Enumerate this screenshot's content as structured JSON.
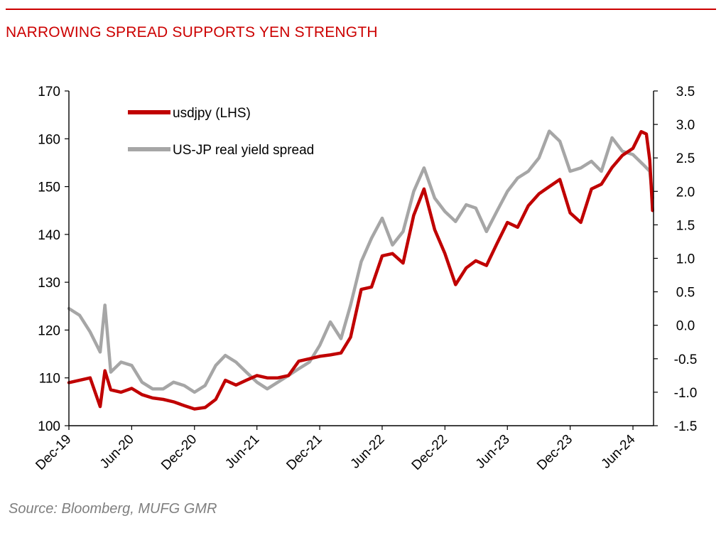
{
  "header": {
    "title": "NARROWING SPREAD SUPPORTS YEN STRENGTH"
  },
  "footer": {
    "source": "Source: Bloomberg, MUFG GMR"
  },
  "chart_data": {
    "type": "line",
    "title": "NARROWING SPREAD SUPPORTS YEN STRENGTH",
    "xlabel": "",
    "ylabel": "",
    "x_range": [
      "2019-12",
      "2024-07"
    ],
    "x_tick_labels": [
      "Dec-19",
      "Jun-20",
      "Dec-20",
      "Jun-21",
      "Dec-21",
      "Jun-22",
      "Dec-22",
      "Jun-23",
      "Dec-23",
      "Jun-24"
    ],
    "y_left": {
      "range": [
        100,
        170
      ],
      "ticks": [
        100,
        110,
        120,
        130,
        140,
        150,
        160,
        170
      ]
    },
    "y_right": {
      "range": [
        -1.5,
        3.5
      ],
      "ticks": [
        "-1.5",
        "-1.0",
        "-0.5",
        "0.0",
        "0.5",
        "1.0",
        "1.5",
        "2.0",
        "2.5",
        "3.0",
        "3.5"
      ]
    },
    "grid": false,
    "legend_position": "top-left",
    "series": [
      {
        "name": "usdjpy (LHS)",
        "axis": "left",
        "color": "#c00000",
        "points": [
          [
            "2019-12-01",
            109.0
          ],
          [
            "2020-01-01",
            109.5
          ],
          [
            "2020-02-01",
            110.0
          ],
          [
            "2020-03-01",
            104.0
          ],
          [
            "2020-03-15",
            111.5
          ],
          [
            "2020-04-01",
            107.5
          ],
          [
            "2020-05-01",
            107.0
          ],
          [
            "2020-06-01",
            107.8
          ],
          [
            "2020-07-01",
            106.5
          ],
          [
            "2020-08-01",
            105.8
          ],
          [
            "2020-09-01",
            105.5
          ],
          [
            "2020-10-01",
            105.0
          ],
          [
            "2020-11-01",
            104.2
          ],
          [
            "2020-12-01",
            103.5
          ],
          [
            "2021-01-01",
            103.8
          ],
          [
            "2021-02-01",
            105.5
          ],
          [
            "2021-03-01",
            109.5
          ],
          [
            "2021-04-01",
            108.5
          ],
          [
            "2021-05-01",
            109.5
          ],
          [
            "2021-06-01",
            110.5
          ],
          [
            "2021-07-01",
            110.0
          ],
          [
            "2021-08-01",
            110.0
          ],
          [
            "2021-09-01",
            110.5
          ],
          [
            "2021-10-01",
            113.5
          ],
          [
            "2021-11-01",
            114.0
          ],
          [
            "2021-12-01",
            114.5
          ],
          [
            "2022-01-01",
            114.8
          ],
          [
            "2022-02-01",
            115.2
          ],
          [
            "2022-03-01",
            118.5
          ],
          [
            "2022-04-01",
            128.5
          ],
          [
            "2022-05-01",
            129.0
          ],
          [
            "2022-06-01",
            135.5
          ],
          [
            "2022-07-01",
            136.0
          ],
          [
            "2022-08-01",
            134.0
          ],
          [
            "2022-09-01",
            144.0
          ],
          [
            "2022-10-01",
            149.5
          ],
          [
            "2022-11-01",
            141.0
          ],
          [
            "2022-12-01",
            136.0
          ],
          [
            "2023-01-01",
            129.5
          ],
          [
            "2023-02-01",
            133.0
          ],
          [
            "2023-03-01",
            134.5
          ],
          [
            "2023-04-01",
            133.5
          ],
          [
            "2023-05-01",
            138.0
          ],
          [
            "2023-06-01",
            142.5
          ],
          [
            "2023-07-01",
            141.5
          ],
          [
            "2023-08-01",
            146.0
          ],
          [
            "2023-09-01",
            148.5
          ],
          [
            "2023-10-01",
            150.0
          ],
          [
            "2023-11-01",
            151.5
          ],
          [
            "2023-12-01",
            144.5
          ],
          [
            "2024-01-01",
            142.5
          ],
          [
            "2024-02-01",
            149.5
          ],
          [
            "2024-03-01",
            150.5
          ],
          [
            "2024-04-01",
            154.0
          ],
          [
            "2024-05-01",
            156.5
          ],
          [
            "2024-06-01",
            158.0
          ],
          [
            "2024-06-25",
            161.5
          ],
          [
            "2024-07-10",
            161.0
          ],
          [
            "2024-07-20",
            155.5
          ],
          [
            "2024-07-28",
            145.0
          ]
        ]
      },
      {
        "name": "US-JP real yield spread",
        "axis": "right",
        "color": "#a6a6a6",
        "points": [
          [
            "2019-12-01",
            0.25
          ],
          [
            "2020-01-01",
            0.15
          ],
          [
            "2020-02-01",
            -0.1
          ],
          [
            "2020-03-01",
            -0.4
          ],
          [
            "2020-03-15",
            0.3
          ],
          [
            "2020-04-01",
            -0.7
          ],
          [
            "2020-05-01",
            -0.55
          ],
          [
            "2020-06-01",
            -0.6
          ],
          [
            "2020-07-01",
            -0.85
          ],
          [
            "2020-08-01",
            -0.95
          ],
          [
            "2020-09-01",
            -0.95
          ],
          [
            "2020-10-01",
            -0.85
          ],
          [
            "2020-11-01",
            -0.9
          ],
          [
            "2020-12-01",
            -1.0
          ],
          [
            "2021-01-01",
            -0.9
          ],
          [
            "2021-02-01",
            -0.6
          ],
          [
            "2021-03-01",
            -0.45
          ],
          [
            "2021-04-01",
            -0.55
          ],
          [
            "2021-05-01",
            -0.7
          ],
          [
            "2021-06-01",
            -0.85
          ],
          [
            "2021-07-01",
            -0.95
          ],
          [
            "2021-08-01",
            -0.85
          ],
          [
            "2021-09-01",
            -0.75
          ],
          [
            "2021-10-01",
            -0.65
          ],
          [
            "2021-11-01",
            -0.55
          ],
          [
            "2021-12-01",
            -0.3
          ],
          [
            "2022-01-01",
            0.05
          ],
          [
            "2022-02-01",
            -0.2
          ],
          [
            "2022-03-01",
            0.3
          ],
          [
            "2022-04-01",
            0.95
          ],
          [
            "2022-05-01",
            1.3
          ],
          [
            "2022-06-01",
            1.6
          ],
          [
            "2022-07-01",
            1.2
          ],
          [
            "2022-08-01",
            1.4
          ],
          [
            "2022-09-01",
            2.0
          ],
          [
            "2022-10-01",
            2.35
          ],
          [
            "2022-11-01",
            1.9
          ],
          [
            "2022-12-01",
            1.7
          ],
          [
            "2023-01-01",
            1.55
          ],
          [
            "2023-02-01",
            1.8
          ],
          [
            "2023-03-01",
            1.75
          ],
          [
            "2023-04-01",
            1.4
          ],
          [
            "2023-05-01",
            1.7
          ],
          [
            "2023-06-01",
            2.0
          ],
          [
            "2023-07-01",
            2.2
          ],
          [
            "2023-08-01",
            2.3
          ],
          [
            "2023-09-01",
            2.5
          ],
          [
            "2023-10-01",
            2.9
          ],
          [
            "2023-11-01",
            2.75
          ],
          [
            "2023-12-01",
            2.3
          ],
          [
            "2024-01-01",
            2.35
          ],
          [
            "2024-02-01",
            2.45
          ],
          [
            "2024-03-01",
            2.3
          ],
          [
            "2024-04-01",
            2.8
          ],
          [
            "2024-05-01",
            2.6
          ],
          [
            "2024-06-01",
            2.55
          ],
          [
            "2024-07-01",
            2.4
          ],
          [
            "2024-07-20",
            2.3
          ],
          [
            "2024-07-28",
            1.9
          ]
        ]
      }
    ]
  }
}
